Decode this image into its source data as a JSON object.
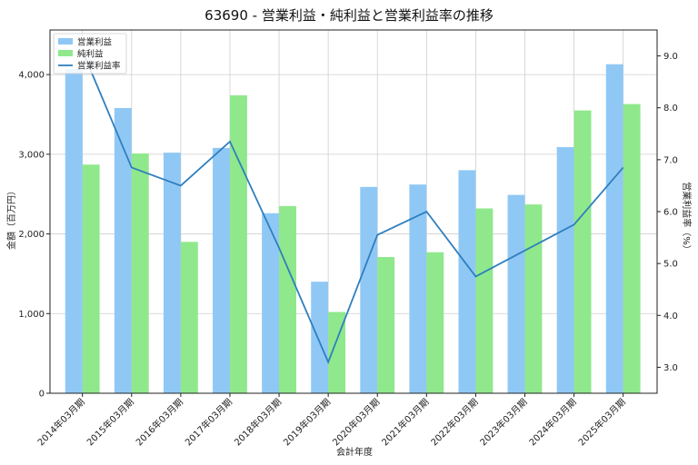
{
  "chart_data": {
    "type": "bar",
    "title": "63690 - 営業利益・純利益と営業利益率の推移",
    "xlabel": "会計年度",
    "ylabel": "金額（百万円）",
    "y2label": "営業利益率（%）",
    "categories": [
      "2014年03月期",
      "2015年03月期",
      "2016年03月期",
      "2017年03月期",
      "2018年03月期",
      "2019年03月期",
      "2020年03月期",
      "2021年03月期",
      "2022年03月期",
      "2023年03月期",
      "2024年03月期",
      "2025年03月期"
    ],
    "series": [
      {
        "name": "営業利益",
        "kind": "bar",
        "axis": "left",
        "color": "#90c8f5",
        "values": [
          4070,
          3580,
          3020,
          3080,
          2260,
          1400,
          2590,
          2620,
          2800,
          2490,
          3090,
          4130
        ]
      },
      {
        "name": "純利益",
        "kind": "bar",
        "axis": "left",
        "color": "#90e88c",
        "values": [
          2870,
          3010,
          1900,
          3740,
          2350,
          1020,
          1710,
          1770,
          2320,
          2370,
          3550,
          3630
        ]
      },
      {
        "name": "営業利益率",
        "kind": "line",
        "axis": "right",
        "color": "#2f7fbf",
        "values": [
          9.1,
          6.85,
          6.5,
          7.35,
          5.3,
          3.1,
          5.55,
          6.0,
          4.75,
          5.25,
          5.75,
          6.85
        ]
      }
    ],
    "ylim": [
      0,
      4560
    ],
    "yticks": [
      0,
      1000,
      2000,
      3000,
      4000
    ],
    "yticklabels": [
      "0",
      "1,000",
      "2,000",
      "3,000",
      "4,000"
    ],
    "y2lim": [
      2.5,
      9.5
    ],
    "y2ticks": [
      3.0,
      4.0,
      5.0,
      6.0,
      7.0,
      8.0,
      9.0
    ],
    "y2ticklabels": [
      "3.0",
      "4.0",
      "5.0",
      "6.0",
      "7.0",
      "8.0",
      "9.0"
    ],
    "grid": true,
    "legend": "top-left"
  }
}
